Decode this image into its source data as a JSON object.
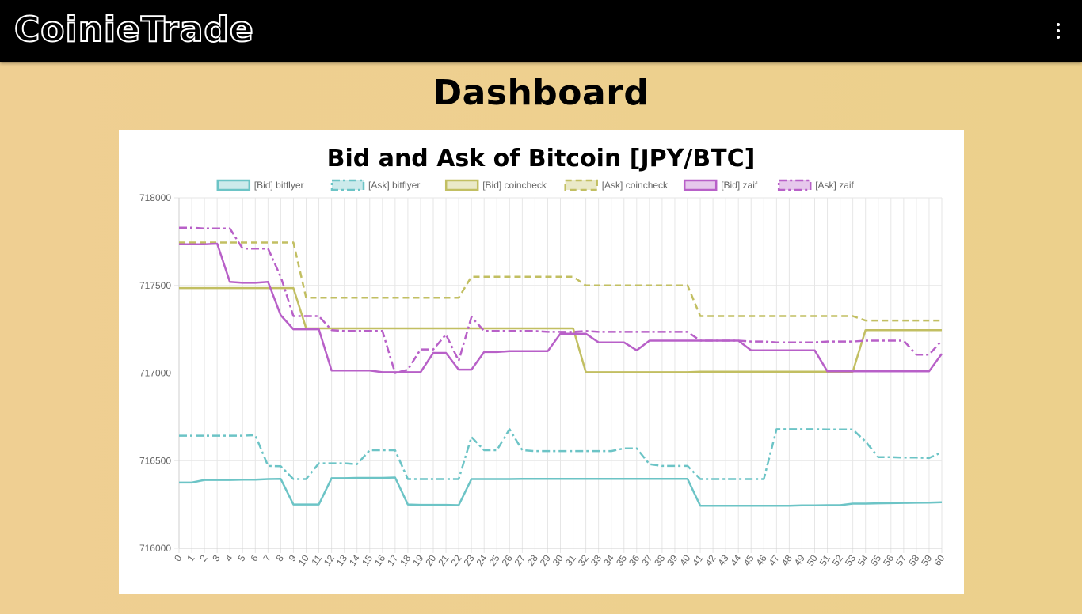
{
  "app": {
    "logo_text": "CoinieTrade"
  },
  "header": {
    "menu_icon": "more-vert-icon"
  },
  "page": {
    "title": "Dashboard"
  },
  "colors": {
    "topbar": "#000000",
    "background": "#eed08e",
    "bitflyer": "#6cc4c6",
    "coincheck": "#c2bf62",
    "zaif": "#b860c8"
  },
  "chart_data": {
    "type": "line",
    "title": "Bid and Ask of Bitcoin [JPY/BTC]",
    "xlabel": "",
    "ylabel": "",
    "ylim": [
      716000,
      718000
    ],
    "yticks": [
      716000,
      716500,
      717000,
      717500,
      718000
    ],
    "grid": true,
    "legend_position": "top",
    "x": [
      0,
      1,
      2,
      3,
      4,
      5,
      6,
      7,
      8,
      9,
      10,
      11,
      12,
      13,
      14,
      15,
      16,
      17,
      18,
      19,
      20,
      21,
      22,
      23,
      24,
      25,
      26,
      27,
      28,
      29,
      30,
      31,
      32,
      33,
      34,
      35,
      36,
      37,
      38,
      39,
      40,
      41,
      42,
      43,
      44,
      45,
      46,
      47,
      48,
      49,
      50,
      51,
      52,
      53,
      54,
      55,
      56,
      57,
      58,
      59,
      60
    ],
    "series": [
      {
        "name": "[Bid] bitflyer",
        "color": "#6cc4c6",
        "dash": "solid",
        "values": [
          716375,
          716375,
          716390,
          716390,
          716390,
          716392,
          716392,
          716395,
          716396,
          716250,
          716250,
          716250,
          716400,
          716400,
          716402,
          716402,
          716402,
          716404,
          716250,
          716248,
          716248,
          716248,
          716246,
          716395,
          716395,
          716395,
          716395,
          716396,
          716396,
          716396,
          716396,
          716396,
          716396,
          716396,
          716396,
          716396,
          716396,
          716396,
          716396,
          716396,
          716396,
          716243,
          716243,
          716243,
          716243,
          716243,
          716243,
          716243,
          716243,
          716245,
          716245,
          716246,
          716246,
          716255,
          716255,
          716257,
          716258,
          716259,
          716260,
          716261,
          716263
        ]
      },
      {
        "name": "[Ask] bitflyer",
        "color": "#6cc4c6",
        "dash": "dashdot",
        "values": [
          716643,
          716643,
          716643,
          716643,
          716643,
          716643,
          716646,
          716470,
          716468,
          716395,
          716395,
          716485,
          716485,
          716485,
          716480,
          716560,
          716560,
          716560,
          716395,
          716395,
          716395,
          716395,
          716395,
          716635,
          716560,
          716560,
          716680,
          716560,
          716555,
          716555,
          716555,
          716555,
          716555,
          716555,
          716555,
          716570,
          716570,
          716480,
          716470,
          716470,
          716470,
          716395,
          716395,
          716395,
          716395,
          716395,
          716395,
          716680,
          716680,
          716680,
          716680,
          716678,
          716678,
          716678,
          716610,
          716520,
          716520,
          716518,
          716518,
          716515,
          716548
        ]
      },
      {
        "name": "[Bid] coincheck",
        "color": "#c2bf62",
        "dash": "solid",
        "values": [
          717485,
          717485,
          717485,
          717485,
          717485,
          717485,
          717485,
          717485,
          717485,
          717485,
          717255,
          717255,
          717255,
          717255,
          717255,
          717255,
          717255,
          717255,
          717255,
          717255,
          717255,
          717255,
          717255,
          717255,
          717255,
          717255,
          717255,
          717255,
          717255,
          717255,
          717255,
          717255,
          717005,
          717005,
          717005,
          717005,
          717005,
          717005,
          717005,
          717005,
          717005,
          717008,
          717008,
          717008,
          717008,
          717008,
          717008,
          717008,
          717008,
          717008,
          717008,
          717008,
          717008,
          717008,
          717245,
          717245,
          717245,
          717245,
          717245,
          717245,
          717245
        ]
      },
      {
        "name": "[Ask] coincheck",
        "color": "#c2bf62",
        "dash": "dash",
        "values": [
          717745,
          717745,
          717745,
          717745,
          717745,
          717745,
          717745,
          717745,
          717745,
          717745,
          717430,
          717430,
          717430,
          717430,
          717430,
          717430,
          717430,
          717430,
          717430,
          717430,
          717430,
          717430,
          717430,
          717550,
          717550,
          717550,
          717550,
          717550,
          717550,
          717550,
          717550,
          717550,
          717500,
          717500,
          717500,
          717500,
          717500,
          717500,
          717500,
          717500,
          717500,
          717325,
          717325,
          717325,
          717325,
          717325,
          717325,
          717325,
          717325,
          717325,
          717325,
          717325,
          717325,
          717325,
          717300,
          717300,
          717300,
          717300,
          717300,
          717300,
          717300
        ]
      },
      {
        "name": "[Bid] zaif",
        "color": "#b860c8",
        "dash": "solid",
        "values": [
          717735,
          717735,
          717735,
          717738,
          717520,
          717515,
          717515,
          717520,
          717330,
          717250,
          717250,
          717250,
          717015,
          717015,
          717015,
          717015,
          717005,
          717005,
          717005,
          717005,
          717115,
          717115,
          717020,
          717020,
          717120,
          717120,
          717125,
          717125,
          717125,
          717125,
          717225,
          717225,
          717225,
          717175,
          717175,
          717175,
          717130,
          717185,
          717185,
          717185,
          717185,
          717185,
          717185,
          717185,
          717185,
          717130,
          717130,
          717130,
          717130,
          717130,
          717130,
          717010,
          717010,
          717010,
          717010,
          717010,
          717010,
          717010,
          717010,
          717010,
          717110
        ]
      },
      {
        "name": "[Ask] zaif",
        "color": "#b860c8",
        "dash": "dashdot",
        "values": [
          717830,
          717830,
          717825,
          717825,
          717825,
          717710,
          717710,
          717710,
          717550,
          717325,
          717325,
          717325,
          717245,
          717240,
          717240,
          717240,
          717240,
          717000,
          717020,
          717135,
          717135,
          717220,
          717070,
          717320,
          717240,
          717240,
          717240,
          717240,
          717240,
          717235,
          717235,
          717235,
          717240,
          717235,
          717235,
          717235,
          717235,
          717235,
          717235,
          717235,
          717235,
          717185,
          717185,
          717185,
          717185,
          717180,
          717180,
          717175,
          717175,
          717175,
          717175,
          717180,
          717180,
          717180,
          717185,
          717185,
          717185,
          717185,
          717105,
          717105,
          717185
        ]
      }
    ]
  }
}
